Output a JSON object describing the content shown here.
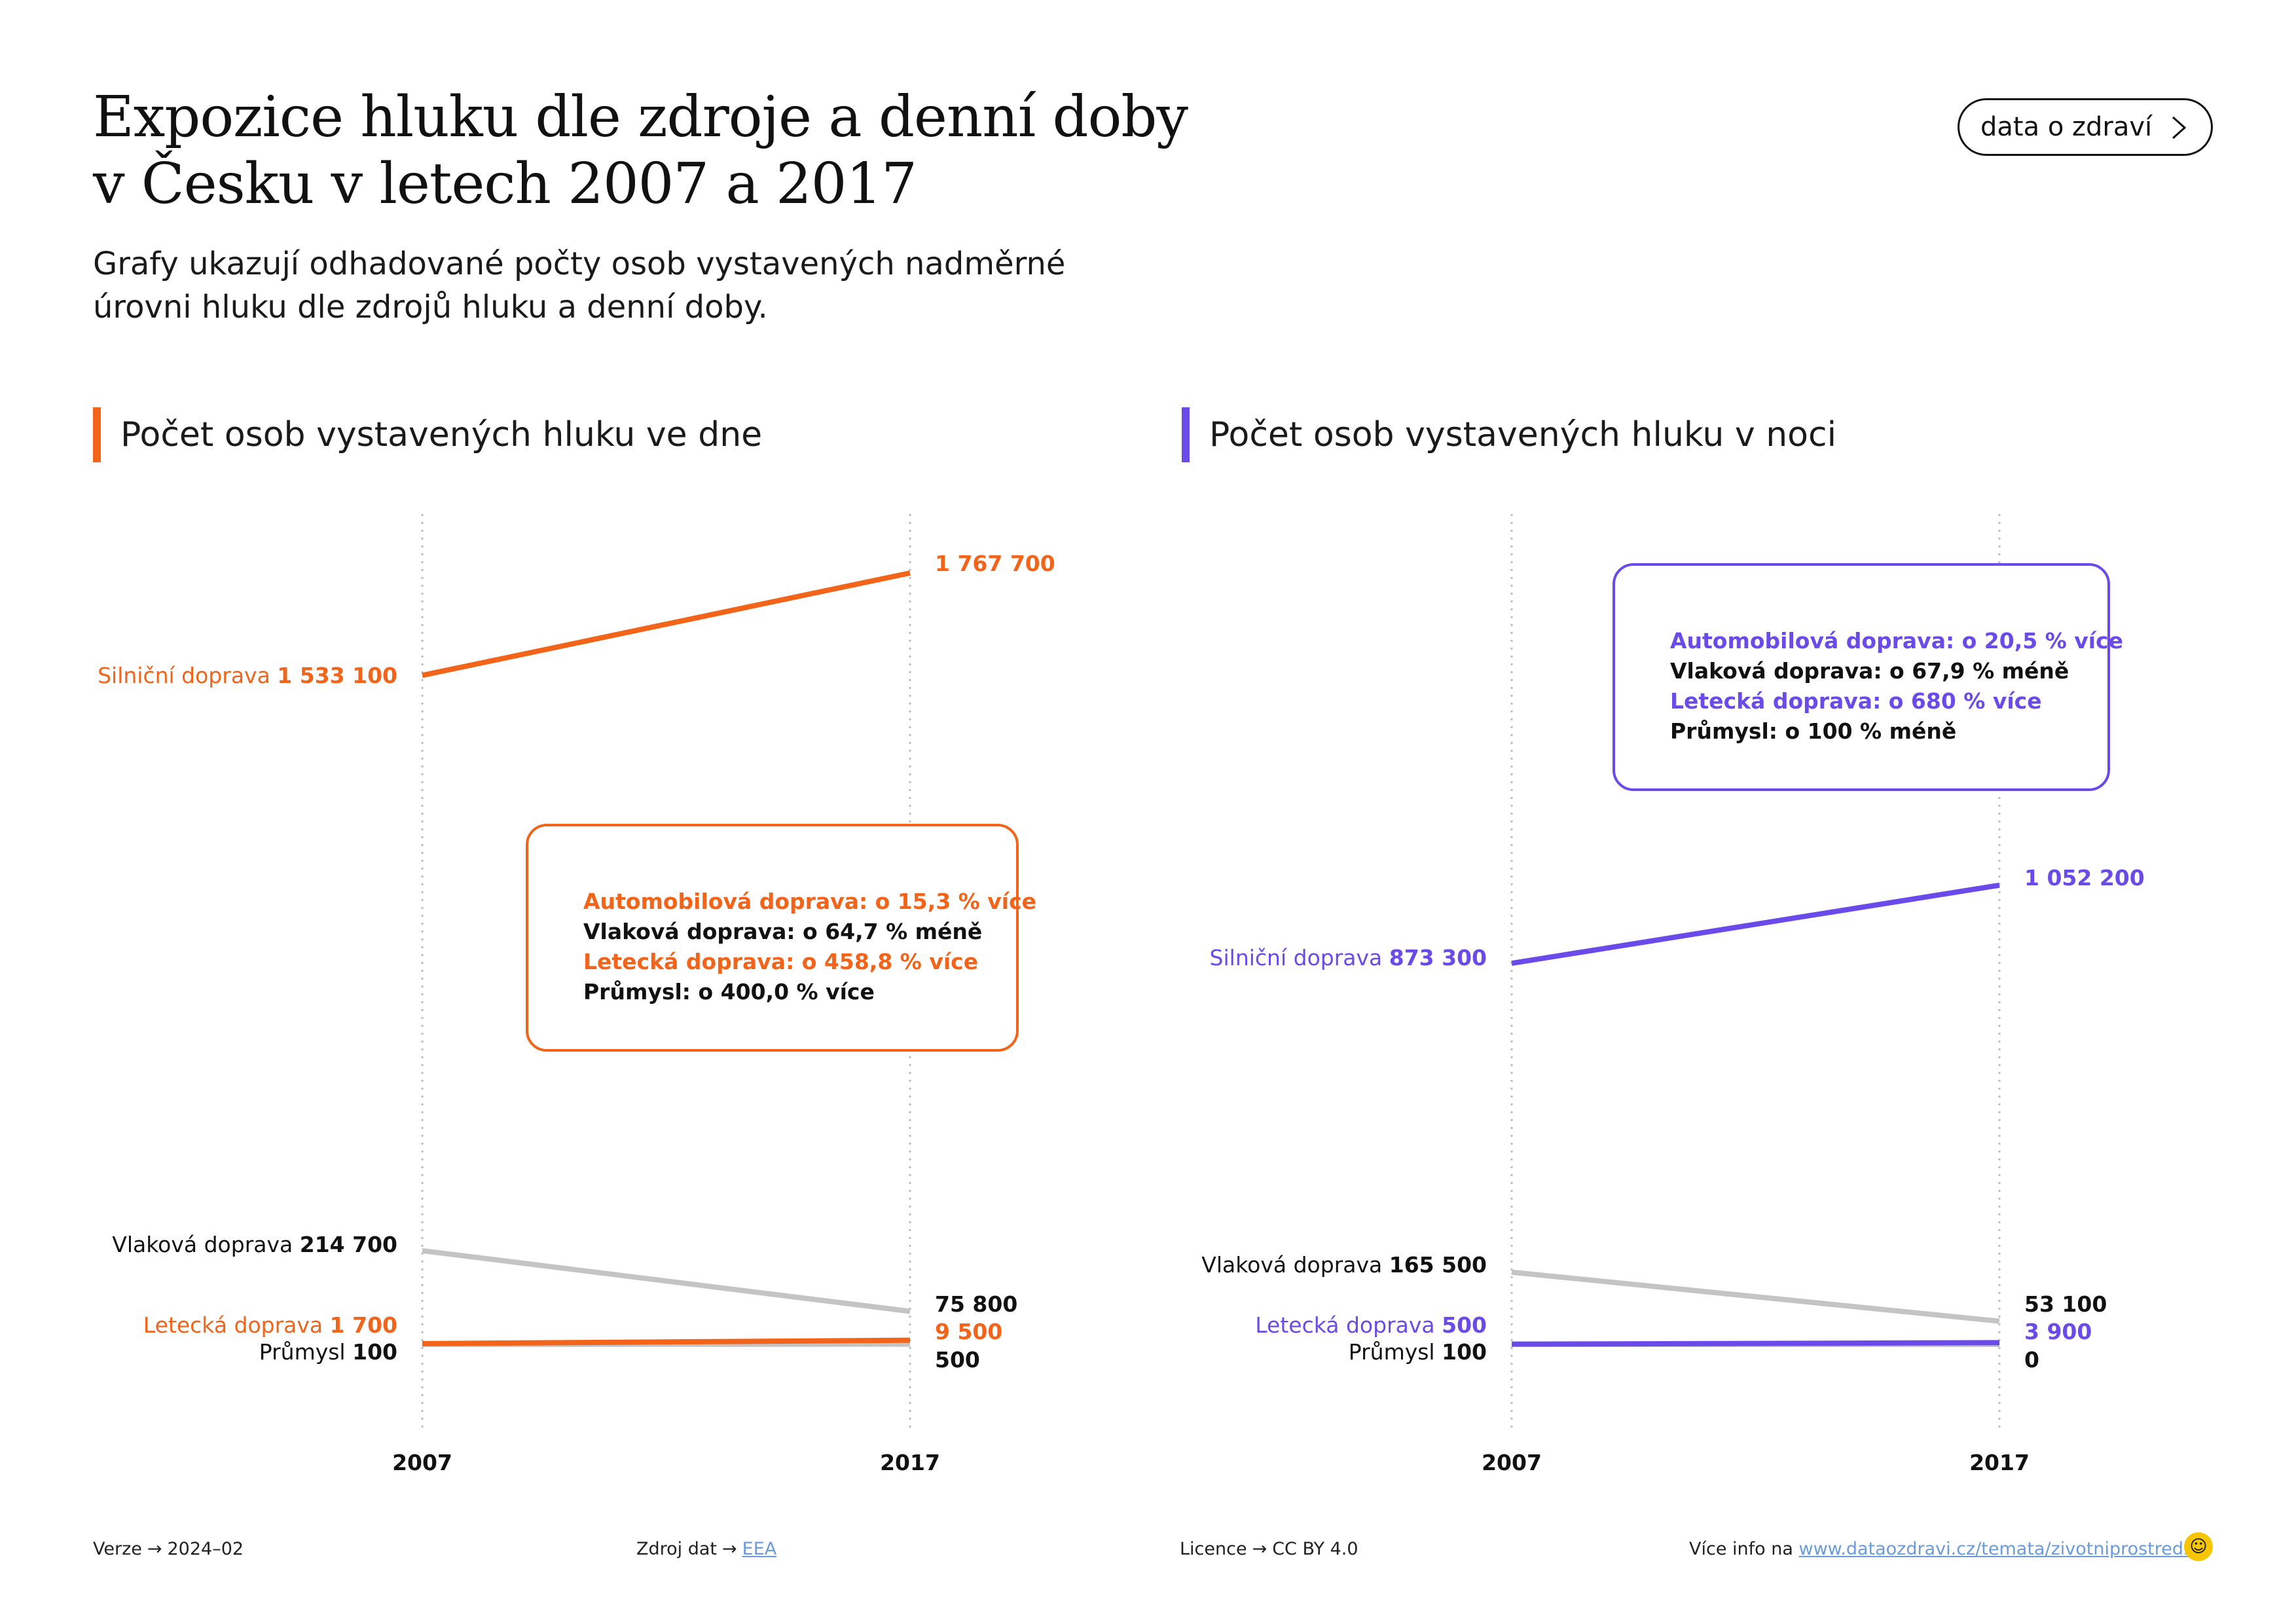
{
  "header": {
    "title_line1": "Expozice hluku dle zdroje a denní doby",
    "title_line2": "v Česku v letech 2007 a 2017",
    "subtitle_line1": "Grafy ukazují odhadované počty osob vystavených nadměrné",
    "subtitle_line2": "úrovni hluku dle zdrojů hluku a denní doby.",
    "nav_button": "data o zdraví"
  },
  "colors": {
    "day_accent": "#f26419",
    "night_accent": "#6a4bea",
    "grey_line": "#c4c4c4",
    "text": "#111111",
    "link": "#6a9bdc",
    "logo": "#f7c600"
  },
  "chart_data": [
    {
      "type": "line",
      "title": "Počet osob vystavených hluku ve dne",
      "x": [
        "2007",
        "2017"
      ],
      "series": [
        {
          "name": "Silniční doprava",
          "values": [
            1533100,
            1767700
          ],
          "label_start": "1 533 100",
          "label_end": "1 767 700",
          "color": "#f26419"
        },
        {
          "name": "Vlaková doprava",
          "values": [
            214700,
            75800
          ],
          "label_start": "214 700",
          "label_end": "75 800",
          "color": "#c4c4c4"
        },
        {
          "name": "Letecká doprava",
          "values": [
            1700,
            9500
          ],
          "label_start": "1 700",
          "label_end": "9 500",
          "color": "#f26419"
        },
        {
          "name": "Průmysl",
          "values": [
            100,
            500
          ],
          "label_start": "100",
          "label_end": "500",
          "color": "#c4c4c4"
        }
      ],
      "callout": [
        {
          "text": "Automobilová doprava: o 15,3 % více",
          "color": "#f26419"
        },
        {
          "text": "Vlaková doprava: o 64,7 % méně",
          "color": "#111111"
        },
        {
          "text": "Letecká doprava: o 458,8 % více",
          "color": "#f26419"
        },
        {
          "text": "Průmysl: o 400,0 % více",
          "color": "#111111"
        }
      ]
    },
    {
      "type": "line",
      "title": "Počet osob vystavených hluku v noci",
      "x": [
        "2007",
        "2017"
      ],
      "series": [
        {
          "name": "Silniční doprava",
          "values": [
            873300,
            1052200
          ],
          "label_start": "873 300",
          "label_end": "1 052 200",
          "color": "#6a4bea"
        },
        {
          "name": "Vlaková doprava",
          "values": [
            165500,
            53100
          ],
          "label_start": "165 500",
          "label_end": "53 100",
          "color": "#c4c4c4"
        },
        {
          "name": "Letecká doprava",
          "values": [
            500,
            3900
          ],
          "label_start": "500",
          "label_end": "3 900",
          "color": "#6a4bea"
        },
        {
          "name": "Průmysl",
          "values": [
            100,
            0
          ],
          "label_start": "100",
          "label_end": "0",
          "color": "#c4c4c4"
        }
      ],
      "callout": [
        {
          "text": "Automobilová doprava: o 20,5 % více",
          "color": "#6a4bea"
        },
        {
          "text": "Vlaková doprava: o 67,9 % méně",
          "color": "#111111"
        },
        {
          "text": "Letecká doprava: o 680 % více",
          "color": "#6a4bea"
        },
        {
          "text": "Průmysl: o 100 % méně",
          "color": "#111111"
        }
      ]
    }
  ],
  "footer": {
    "version_label": "Verze",
    "version": "2024–02",
    "source_label": "Zdroj dat",
    "source_link": "EEA",
    "license_label": "Licence",
    "license": "CC BY 4.0",
    "more_label": "Více info na",
    "more_link": "www.dataozdravi.cz/temata/zivotniprostredi",
    "arrow": "→"
  }
}
